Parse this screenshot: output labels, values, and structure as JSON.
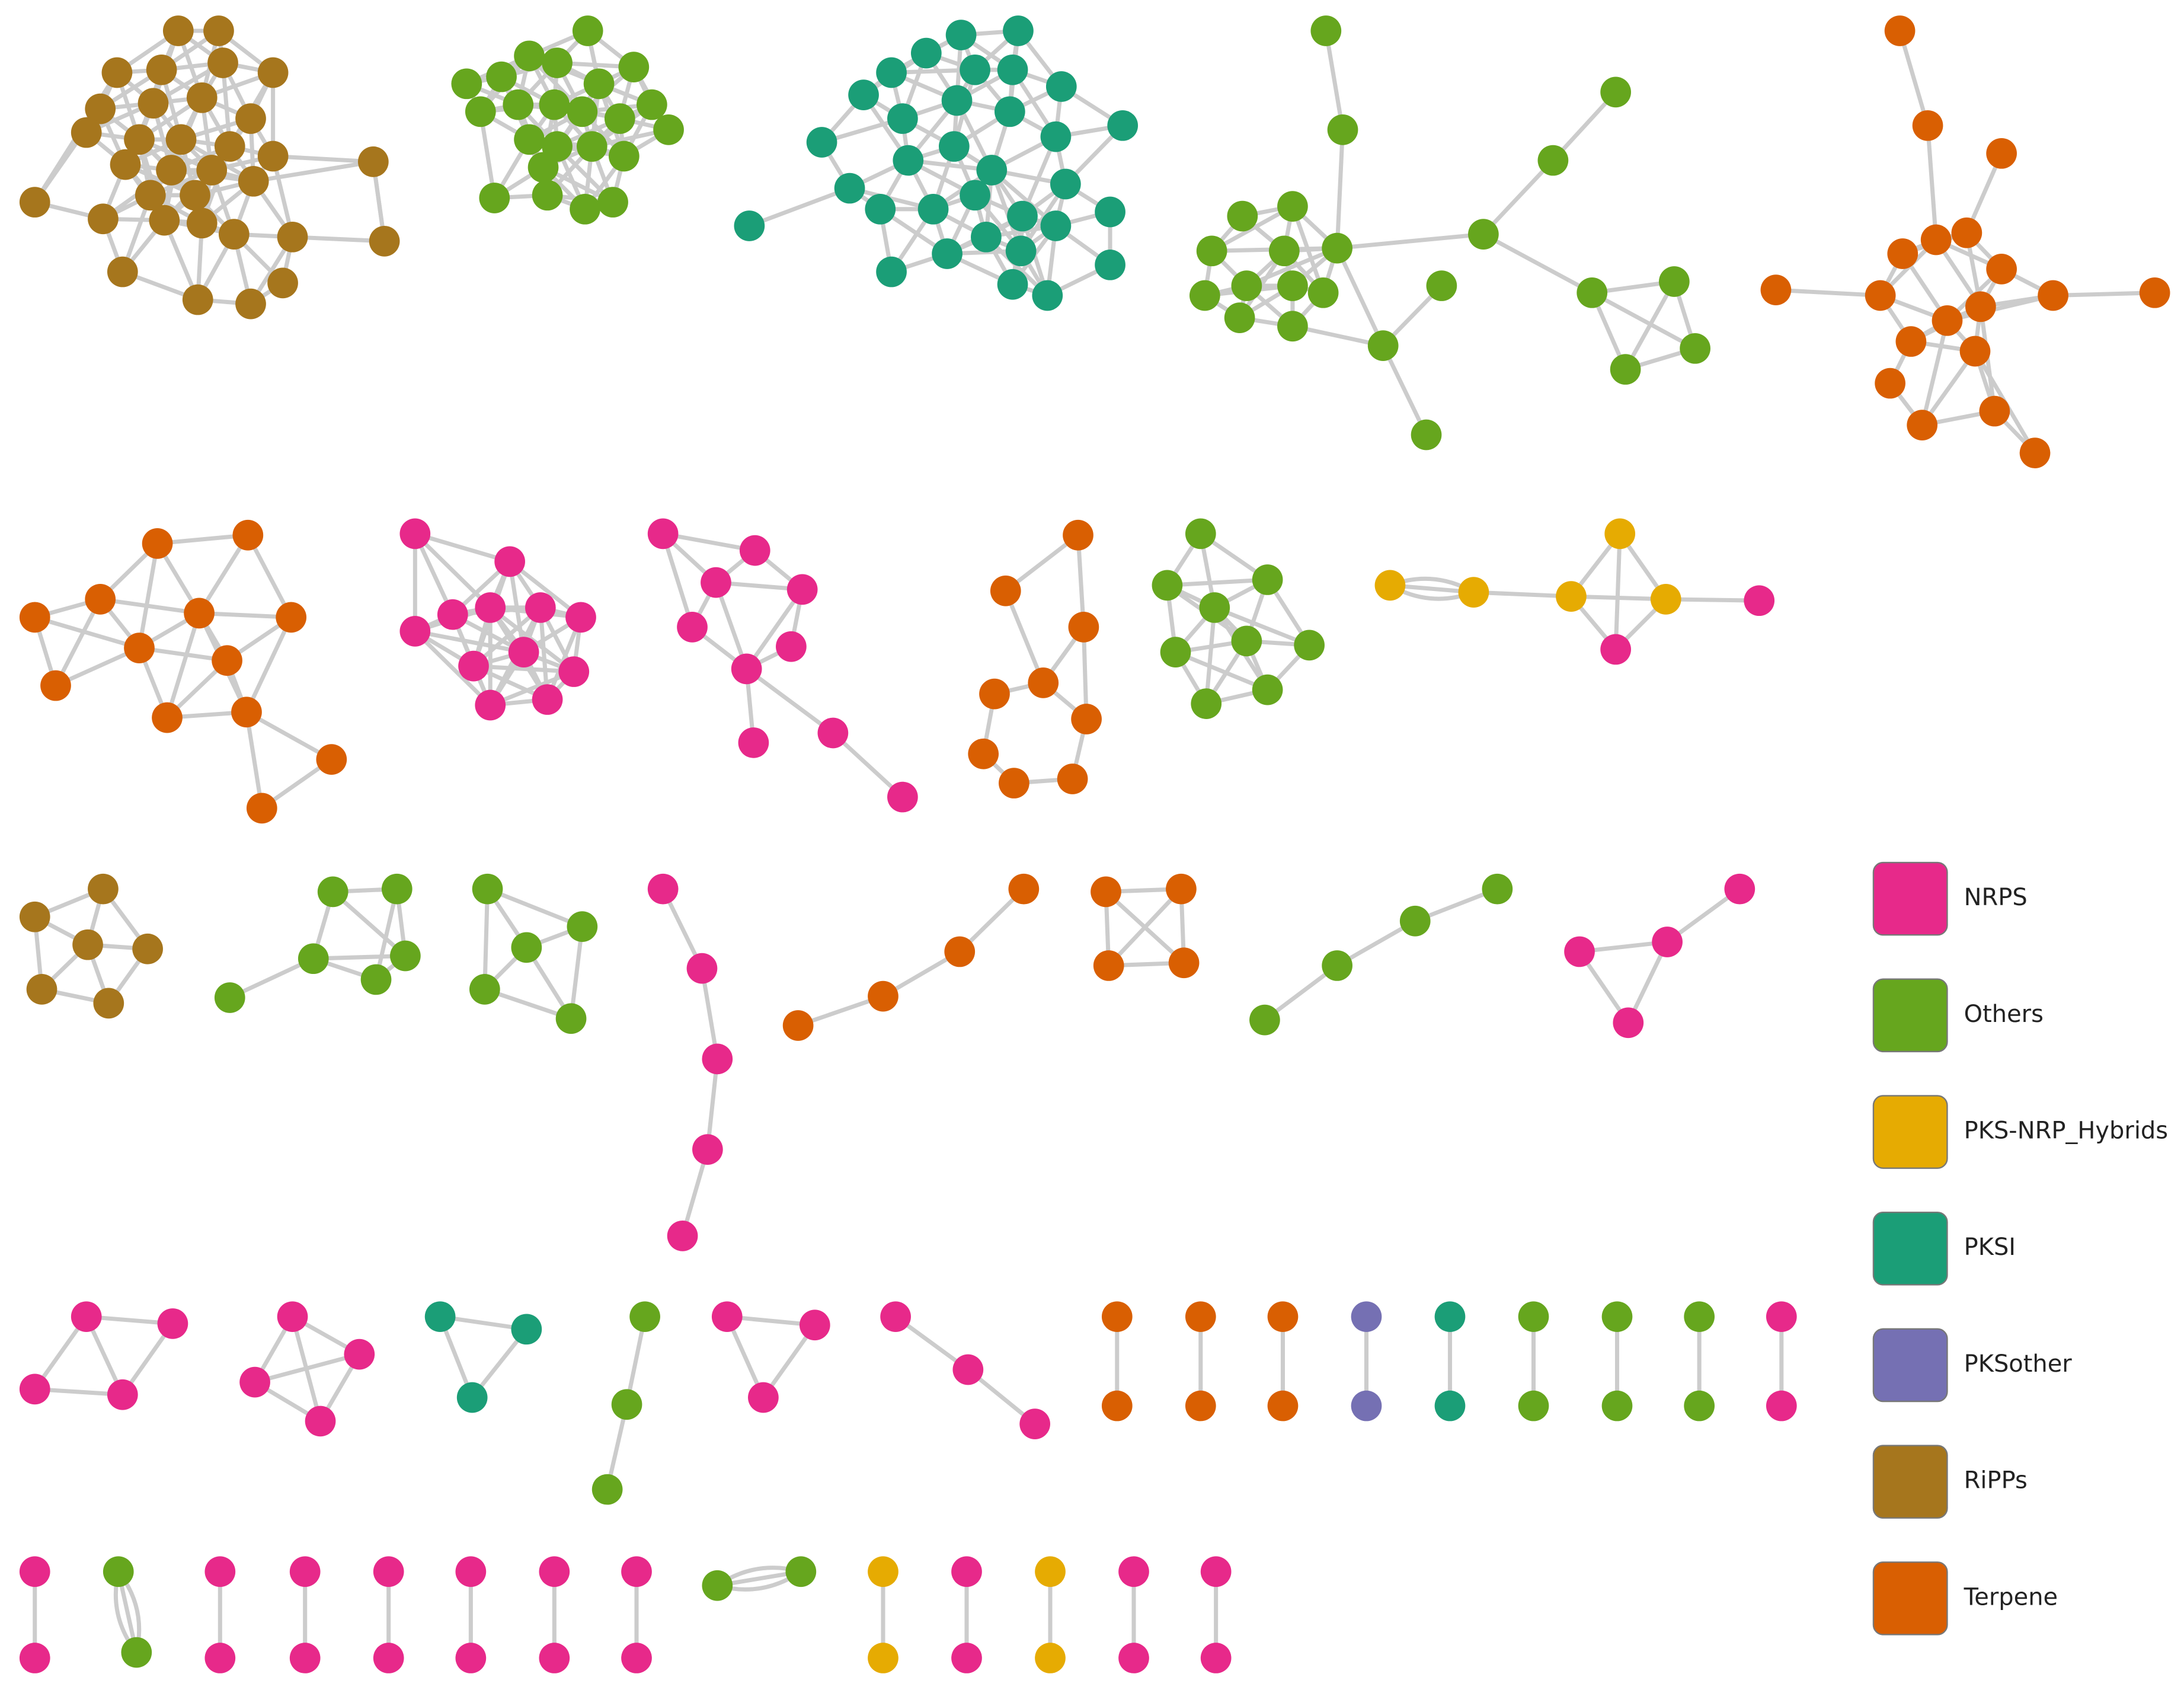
{
  "legend": {
    "items": [
      {
        "label": "NRPS",
        "color": "#e7298a"
      },
      {
        "label": "Others",
        "color": "#66a61e"
      },
      {
        "label": "PKS-NRP_Hybrids",
        "color": "#e6ab02"
      },
      {
        "label": "PKSI",
        "color": "#1b9e77"
      },
      {
        "label": "PKSother",
        "color": "#7570b3"
      },
      {
        "label": "RiPPs",
        "color": "#a6761d"
      },
      {
        "label": "Terpene",
        "color": "#d95f02"
      }
    ]
  }
}
